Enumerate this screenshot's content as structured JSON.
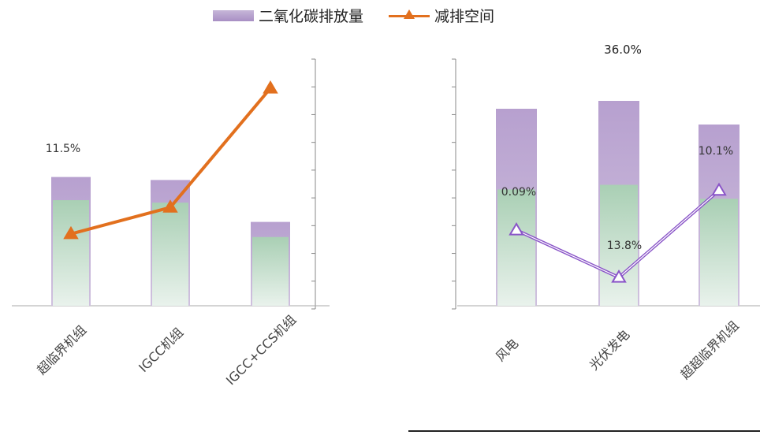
{
  "legend": {
    "bar_label": "二氧化碳排放量",
    "line_label": "减排空间"
  },
  "chart_data": [
    {
      "type": "bar",
      "categories": [
        "超临界机组",
        "IGCC机组",
        "IGCC+CCS机组"
      ],
      "series": [
        {
          "name": "二氧化碳排放量",
          "values": [
            0.43,
            0.42,
            0.28
          ]
        },
        {
          "name": "减排空间",
          "values": [
            3.8,
            5.2,
            11.5
          ]
        }
      ],
      "data_labels": [
        "11.5%"
      ]
    },
    {
      "type": "bar",
      "categories": [
        "风电",
        "光伏发电",
        "超超临界机组"
      ],
      "series": [
        {
          "name": "二氧化碳排放量",
          "values": [
            0.5,
            0.52,
            0.46
          ]
        },
        {
          "name": "减排空间",
          "values": [
            4.0,
            1.5,
            6.1
          ]
        }
      ],
      "data_labels": [
        "36.0%",
        "0.09%",
        "13.8%",
        "10.1%"
      ]
    }
  ]
}
